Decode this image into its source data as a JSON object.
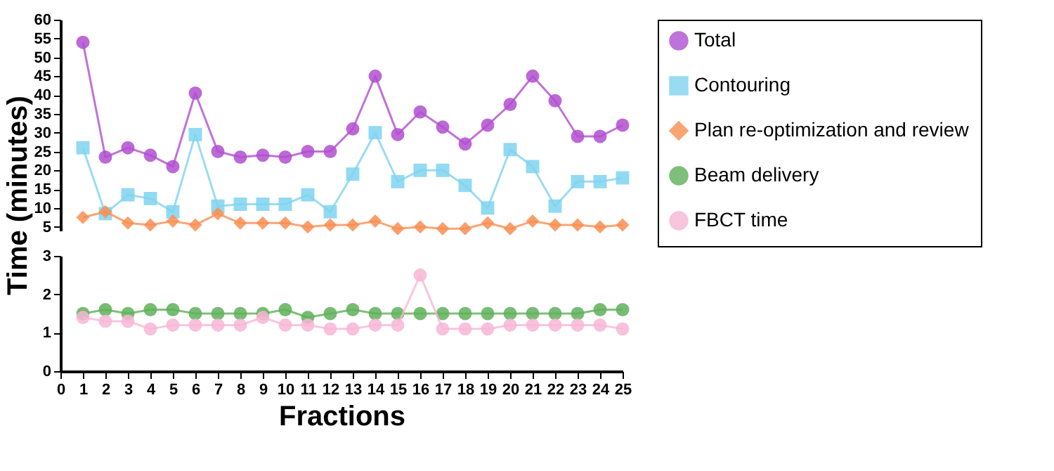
{
  "chart_data": [
    {
      "type": "line",
      "ylabel": "Time (minutes)",
      "x": [
        1,
        2,
        3,
        4,
        5,
        6,
        7,
        8,
        9,
        10,
        11,
        12,
        13,
        14,
        15,
        16,
        17,
        18,
        19,
        20,
        21,
        22,
        23,
        24,
        25
      ],
      "ylim": [
        4,
        60
      ],
      "yticks": [
        5,
        10,
        15,
        20,
        25,
        30,
        35,
        40,
        45,
        50,
        55,
        60
      ],
      "tick_labels": "y",
      "grid": false,
      "legend": "right",
      "line_style": "solid",
      "series": [
        {
          "name": "Total",
          "color": "#b04fd0",
          "marker": "circle",
          "values": [
            54,
            23.5,
            26,
            24,
            21,
            40.5,
            25,
            23.5,
            24,
            23.5,
            25,
            25,
            31,
            45,
            29.5,
            35.5,
            31.5,
            27,
            32,
            37.5,
            45,
            38.5,
            29,
            29,
            32
          ]
        },
        {
          "name": "Contouring",
          "color": "#7fd3f0",
          "marker": "square",
          "values": [
            26,
            8.5,
            13.5,
            12.5,
            9,
            29.5,
            10.5,
            11,
            11,
            11,
            13.5,
            9,
            19,
            30,
            17,
            20,
            20,
            16,
            10,
            25.5,
            21,
            10.5,
            17,
            17,
            18
          ]
        },
        {
          "name": "Plan re-optimization and review",
          "color": "#f98e52",
          "marker": "diamond",
          "values": [
            7.5,
            9,
            6,
            5.5,
            6.5,
            5.5,
            8.5,
            6,
            6,
            6,
            5,
            5.5,
            5.5,
            6.5,
            4.5,
            5,
            4.5,
            4.5,
            6,
            4.5,
            6.5,
            5.5,
            5.5,
            5,
            5.5
          ]
        }
      ]
    },
    {
      "type": "line",
      "xlabel": "Fractions",
      "x": [
        1,
        2,
        3,
        4,
        5,
        6,
        7,
        8,
        9,
        10,
        11,
        12,
        13,
        14,
        15,
        16,
        17,
        18,
        19,
        20,
        21,
        22,
        23,
        24,
        25
      ],
      "xlim": [
        0,
        25
      ],
      "xticks": [
        0,
        1,
        2,
        3,
        4,
        5,
        6,
        7,
        8,
        9,
        10,
        11,
        12,
        13,
        14,
        15,
        16,
        17,
        18,
        19,
        20,
        21,
        22,
        23,
        24,
        25
      ],
      "ylim": [
        0,
        3
      ],
      "yticks": [
        0,
        1,
        2,
        3
      ],
      "grid": false,
      "legend": "right",
      "line_style": "solid",
      "series": [
        {
          "name": "Beam delivery",
          "color": "#5fb05a",
          "marker": "circle",
          "values": [
            1.5,
            1.6,
            1.5,
            1.6,
            1.6,
            1.5,
            1.5,
            1.5,
            1.5,
            1.6,
            1.4,
            1.5,
            1.6,
            1.5,
            1.5,
            1.5,
            1.5,
            1.5,
            1.5,
            1.5,
            1.5,
            1.5,
            1.5,
            1.6,
            1.6
          ]
        },
        {
          "name": "FBCT time",
          "color": "#f7b6d6",
          "marker": "circle",
          "values": [
            1.4,
            1.3,
            1.3,
            1.1,
            1.2,
            1.2,
            1.2,
            1.2,
            1.4,
            1.2,
            1.2,
            1.1,
            1.1,
            1.2,
            1.2,
            2.5,
            1.1,
            1.1,
            1.1,
            1.2,
            1.2,
            1.2,
            1.2,
            1.2,
            1.1
          ]
        }
      ]
    }
  ]
}
